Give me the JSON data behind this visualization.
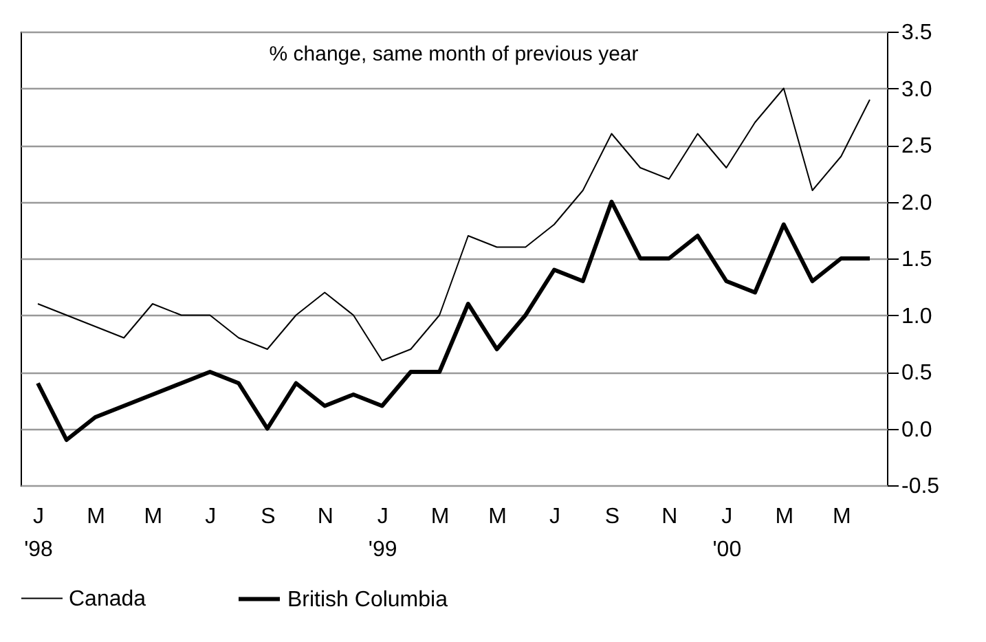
{
  "chart_data": {
    "type": "line",
    "title": "% change, same month of previous year",
    "categories": [
      "J\n'98",
      null,
      "M",
      null,
      "M",
      null,
      "J",
      null,
      "S",
      null,
      "N",
      null,
      "J\n'99",
      null,
      "M",
      null,
      "M",
      null,
      "J",
      null,
      "S",
      null,
      "N",
      null,
      "J\n'00",
      null,
      "M",
      null,
      "M",
      null
    ],
    "series": [
      {
        "name": "Canada",
        "color": "#000000",
        "values": [
          1.1,
          1.0,
          0.9,
          0.8,
          1.1,
          1.0,
          1.0,
          0.8,
          0.7,
          1.0,
          1.2,
          1.0,
          0.6,
          0.7,
          1.0,
          1.7,
          1.6,
          1.6,
          1.8,
          2.1,
          2.6,
          2.3,
          2.2,
          2.6,
          2.3,
          2.7,
          3.0,
          2.1,
          2.4,
          2.9
        ]
      },
      {
        "name": "British Columbia",
        "color": "#000000",
        "values": [
          0.4,
          -0.1,
          0.1,
          0.2,
          0.3,
          0.4,
          0.5,
          0.4,
          0.0,
          0.4,
          0.2,
          0.3,
          0.2,
          0.5,
          0.5,
          1.1,
          0.7,
          1.0,
          1.4,
          1.3,
          2.0,
          1.5,
          1.5,
          1.7,
          1.3,
          1.2,
          1.8,
          1.3,
          1.5,
          1.5
        ]
      }
    ],
    "ylim": [
      -0.5,
      3.5
    ],
    "yticks": [
      {
        "value": -0.5,
        "label": "-0.5"
      },
      {
        "value": 0,
        "label": "0.0"
      },
      {
        "value": 0.5,
        "label": "0.5"
      },
      {
        "value": 1,
        "label": "1.0"
      },
      {
        "value": 1.5,
        "label": "1.5"
      },
      {
        "value": 2,
        "label": "2.0"
      },
      {
        "value": 2.5,
        "label": "2.5"
      },
      {
        "value": 3,
        "label": "3.0"
      },
      {
        "value": 3.5,
        "label": "3.5"
      }
    ],
    "grid": "y",
    "legend": "bottom",
    "marker": "none",
    "line_style": "solid"
  }
}
